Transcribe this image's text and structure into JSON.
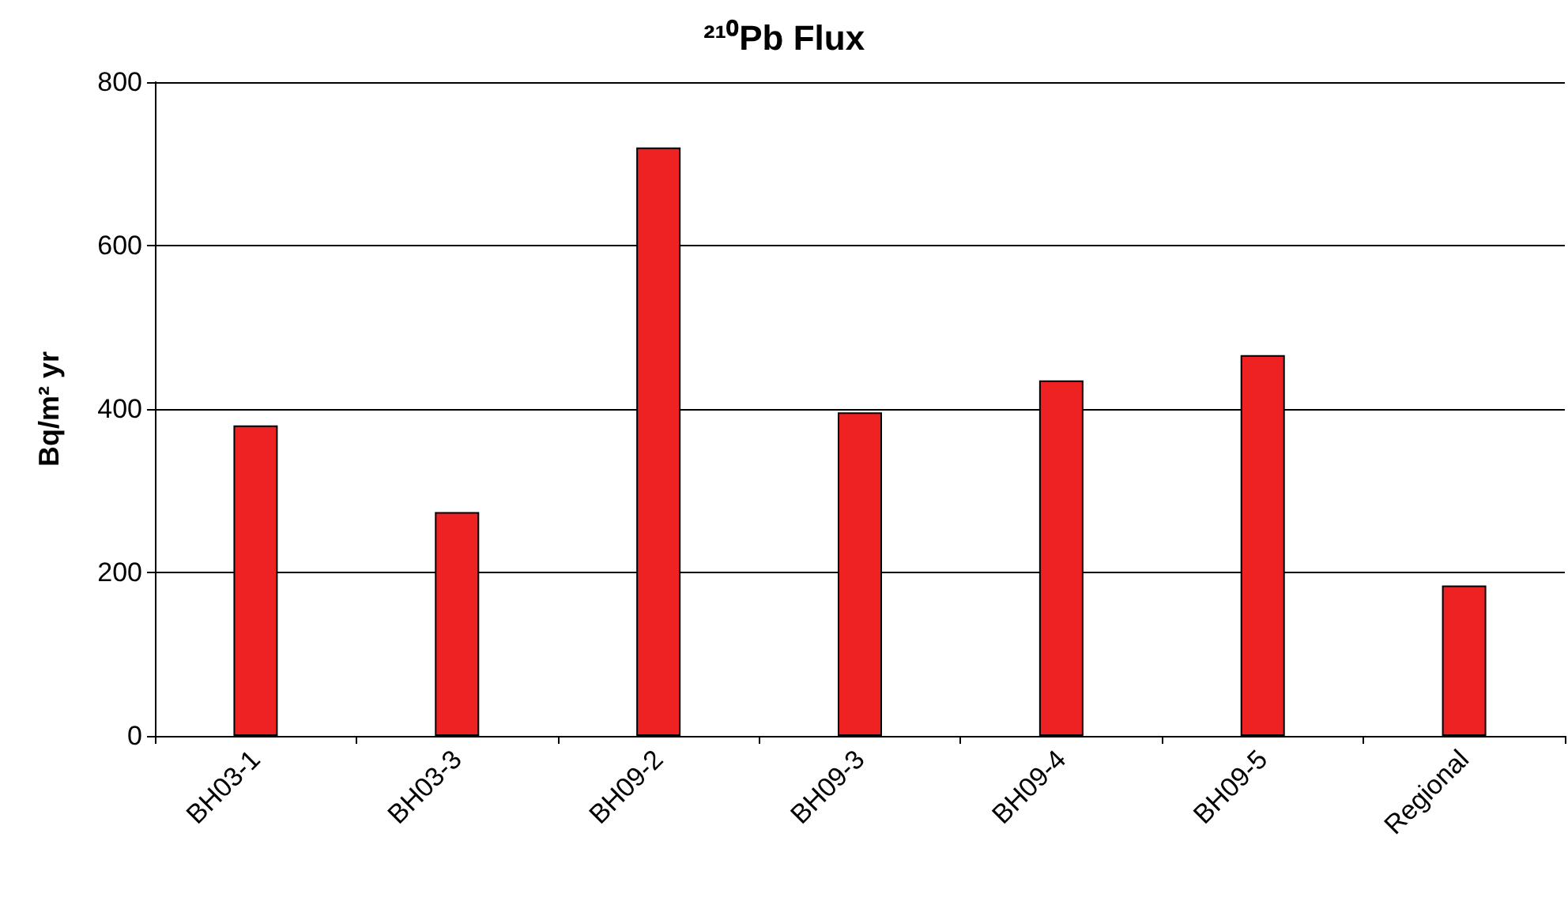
{
  "chart_data": {
    "type": "bar",
    "title": "²¹⁰Pb Flux",
    "ylabel": "Bq/m² yr",
    "categories": [
      "BH03-1",
      "BH03-3",
      "BH09-2",
      "BH09-3",
      "BH09-4",
      "BH09-5",
      "Regional"
    ],
    "values": [
      380,
      274,
      720,
      396,
      435,
      466,
      184
    ],
    "color": "#ee2222",
    "ylim": [
      0,
      800
    ],
    "yticks": [
      0,
      200,
      400,
      600,
      800
    ],
    "grid": "y"
  }
}
